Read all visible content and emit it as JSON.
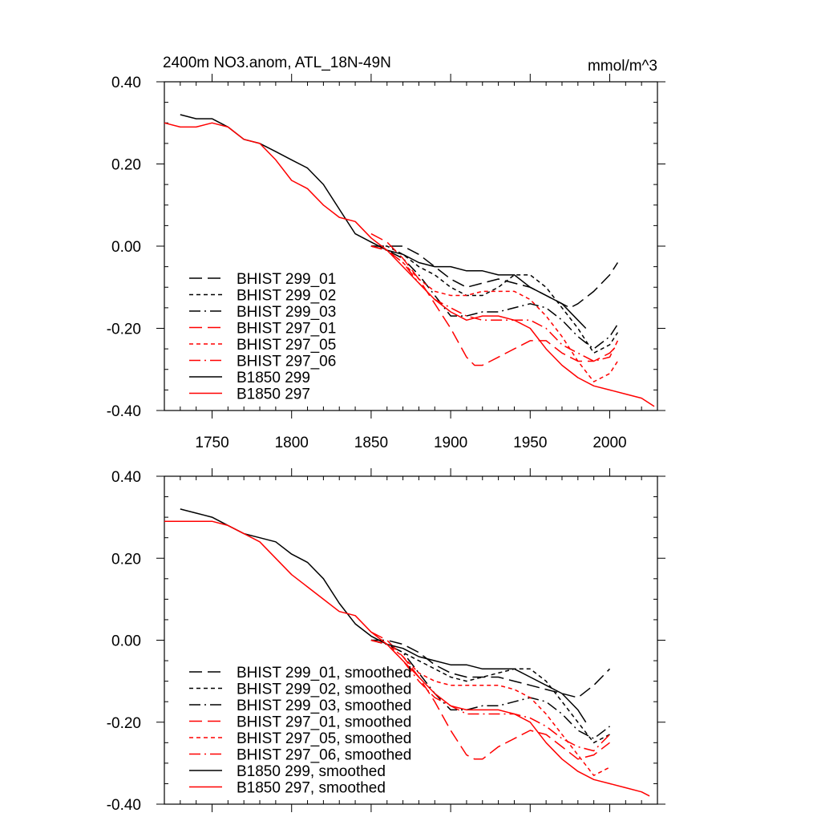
{
  "figure": {
    "title": "2400m NO3.anom, ATL_18N-49N",
    "units": "mmol/m^3"
  },
  "colors": {
    "black": "#000000",
    "red": "#ff0000"
  },
  "chart_data": [
    {
      "type": "line",
      "title": "2400m NO3.anom, ATL_18N-49N",
      "units": "mmol/m^3",
      "xlim": [
        1720,
        2030
      ],
      "ylim": [
        -0.4,
        0.4
      ],
      "xticks": [
        1750,
        1800,
        1850,
        1900,
        1950,
        2000
      ],
      "yticks": [
        0.4,
        0.2,
        0.0,
        -0.2,
        -0.4
      ],
      "ytick_labels": [
        "0.40",
        "0.20",
        "0.00",
        "-0.20",
        "-0.40"
      ],
      "legend_position": "bottom-left",
      "series": [
        {
          "name": "BHIST 299_01",
          "color": "#000000",
          "dash": "long",
          "x": [
            1850,
            1860,
            1870,
            1880,
            1890,
            1900,
            1910,
            1920,
            1930,
            1940,
            1950,
            1960,
            1970,
            1975,
            1980,
            1990,
            2000,
            2005
          ],
          "y": [
            0.0,
            0.0,
            0.0,
            -0.02,
            -0.05,
            -0.08,
            -0.1,
            -0.09,
            -0.08,
            -0.09,
            -0.1,
            -0.12,
            -0.14,
            -0.15,
            -0.14,
            -0.11,
            -0.07,
            -0.04
          ]
        },
        {
          "name": "BHIST 299_02",
          "color": "#000000",
          "dash": "short",
          "x": [
            1850,
            1860,
            1870,
            1880,
            1890,
            1900,
            1910,
            1920,
            1930,
            1940,
            1950,
            1960,
            1970,
            1980,
            1990,
            2000,
            2005
          ],
          "y": [
            0.0,
            0.0,
            -0.02,
            -0.05,
            -0.07,
            -0.1,
            -0.12,
            -0.12,
            -0.1,
            -0.07,
            -0.07,
            -0.1,
            -0.15,
            -0.2,
            -0.26,
            -0.24,
            -0.21
          ]
        },
        {
          "name": "BHIST 299_03",
          "color": "#000000",
          "dash": "dashdot",
          "x": [
            1850,
            1860,
            1870,
            1880,
            1890,
            1900,
            1910,
            1920,
            1930,
            1940,
            1950,
            1960,
            1970,
            1980,
            1990,
            2000,
            2005
          ],
          "y": [
            0.0,
            -0.01,
            -0.03,
            -0.07,
            -0.12,
            -0.17,
            -0.17,
            -0.16,
            -0.16,
            -0.15,
            -0.14,
            -0.15,
            -0.18,
            -0.22,
            -0.25,
            -0.22,
            -0.19
          ]
        },
        {
          "name": "BHIST 297_01",
          "color": "#ff0000",
          "dash": "long",
          "x": [
            1850,
            1860,
            1870,
            1880,
            1890,
            1900,
            1910,
            1915,
            1920,
            1925,
            1930,
            1940,
            1950,
            1960,
            1970,
            1980,
            1990,
            2000,
            2005
          ],
          "y": [
            0.03,
            0.01,
            -0.03,
            -0.08,
            -0.14,
            -0.2,
            -0.27,
            -0.29,
            -0.29,
            -0.28,
            -0.27,
            -0.25,
            -0.23,
            -0.23,
            -0.26,
            -0.28,
            -0.28,
            -0.26,
            -0.24
          ]
        },
        {
          "name": "BHIST 297_05",
          "color": "#ff0000",
          "dash": "short",
          "x": [
            1850,
            1860,
            1870,
            1880,
            1890,
            1900,
            1910,
            1920,
            1930,
            1940,
            1950,
            1960,
            1970,
            1980,
            1990,
            2000,
            2005
          ],
          "y": [
            0.0,
            -0.01,
            -0.04,
            -0.08,
            -0.11,
            -0.12,
            -0.12,
            -0.11,
            -0.11,
            -0.11,
            -0.13,
            -0.17,
            -0.22,
            -0.28,
            -0.33,
            -0.31,
            -0.28
          ]
        },
        {
          "name": "BHIST 297_06",
          "color": "#ff0000",
          "dash": "dashdot",
          "x": [
            1850,
            1860,
            1870,
            1880,
            1890,
            1900,
            1910,
            1920,
            1930,
            1940,
            1950,
            1960,
            1970,
            1980,
            1990,
            2000,
            2005
          ],
          "y": [
            0.0,
            -0.01,
            -0.04,
            -0.09,
            -0.13,
            -0.15,
            -0.17,
            -0.18,
            -0.18,
            -0.18,
            -0.18,
            -0.2,
            -0.24,
            -0.26,
            -0.28,
            -0.27,
            -0.23
          ]
        },
        {
          "name": "B1850 299",
          "color": "#000000",
          "dash": "solid",
          "x": [
            1730,
            1740,
            1750,
            1760,
            1770,
            1780,
            1790,
            1800,
            1810,
            1820,
            1830,
            1840,
            1850,
            1860,
            1870,
            1880,
            1890,
            1900,
            1910,
            1920,
            1930,
            1940,
            1950,
            1960,
            1970,
            1980,
            1985
          ],
          "y": [
            0.32,
            0.31,
            0.31,
            0.29,
            0.26,
            0.25,
            0.23,
            0.21,
            0.19,
            0.15,
            0.09,
            0.03,
            0.01,
            -0.01,
            -0.02,
            -0.04,
            -0.05,
            -0.05,
            -0.06,
            -0.06,
            -0.07,
            -0.07,
            -0.1,
            -0.12,
            -0.14,
            -0.18,
            -0.2
          ]
        },
        {
          "name": "B1850 297",
          "color": "#ff0000",
          "dash": "solid",
          "x": [
            1720,
            1730,
            1740,
            1750,
            1760,
            1770,
            1780,
            1790,
            1800,
            1810,
            1820,
            1830,
            1840,
            1850,
            1860,
            1870,
            1880,
            1890,
            1900,
            1910,
            1920,
            1930,
            1940,
            1950,
            1960,
            1970,
            1980,
            1990,
            2000,
            2010,
            2020,
            2028
          ],
          "y": [
            0.3,
            0.29,
            0.29,
            0.3,
            0.29,
            0.26,
            0.25,
            0.21,
            0.16,
            0.14,
            0.1,
            0.07,
            0.06,
            0.02,
            -0.01,
            -0.05,
            -0.09,
            -0.13,
            -0.16,
            -0.18,
            -0.17,
            -0.17,
            -0.18,
            -0.2,
            -0.25,
            -0.29,
            -0.32,
            -0.34,
            -0.35,
            -0.36,
            -0.37,
            -0.39
          ]
        }
      ]
    },
    {
      "type": "line",
      "xlim": [
        1720,
        2030
      ],
      "ylim": [
        -0.4,
        0.4
      ],
      "xticks": [
        1750,
        1800,
        1850,
        1900,
        1950,
        2000
      ],
      "yticks": [
        0.4,
        0.2,
        0.0,
        -0.2,
        -0.4
      ],
      "ytick_labels": [
        "0.40",
        "0.20",
        "0.00",
        "-0.20",
        "-0.40"
      ],
      "legend_position": "bottom-left",
      "series": [
        {
          "name": "BHIST 299_01, smoothed",
          "color": "#000000",
          "dash": "long",
          "x": [
            1850,
            1860,
            1870,
            1880,
            1890,
            1900,
            1910,
            1920,
            1930,
            1940,
            1950,
            1960,
            1970,
            1980,
            1990,
            2000
          ],
          "y": [
            0.0,
            0.0,
            -0.01,
            -0.03,
            -0.06,
            -0.08,
            -0.09,
            -0.09,
            -0.09,
            -0.1,
            -0.11,
            -0.12,
            -0.13,
            -0.14,
            -0.11,
            -0.07
          ]
        },
        {
          "name": "BHIST 299_02, smoothed",
          "color": "#000000",
          "dash": "short",
          "x": [
            1850,
            1860,
            1870,
            1880,
            1890,
            1900,
            1910,
            1920,
            1930,
            1940,
            1950,
            1960,
            1970,
            1980,
            1990,
            2000
          ],
          "y": [
            0.0,
            -0.01,
            -0.03,
            -0.05,
            -0.07,
            -0.09,
            -0.1,
            -0.09,
            -0.08,
            -0.07,
            -0.07,
            -0.1,
            -0.15,
            -0.2,
            -0.25,
            -0.23
          ]
        },
        {
          "name": "BHIST 299_03, smoothed",
          "color": "#000000",
          "dash": "dashdot",
          "x": [
            1850,
            1860,
            1870,
            1880,
            1890,
            1900,
            1910,
            1920,
            1930,
            1940,
            1950,
            1960,
            1970,
            1980,
            1990,
            2000
          ],
          "y": [
            0.0,
            -0.01,
            -0.03,
            -0.08,
            -0.13,
            -0.17,
            -0.17,
            -0.16,
            -0.16,
            -0.15,
            -0.14,
            -0.15,
            -0.18,
            -0.22,
            -0.24,
            -0.21
          ]
        },
        {
          "name": "BHIST 297_01, smoothed",
          "color": "#ff0000",
          "dash": "long",
          "x": [
            1850,
            1860,
            1870,
            1880,
            1890,
            1900,
            1910,
            1915,
            1920,
            1930,
            1940,
            1950,
            1960,
            1970,
            1980,
            1990,
            2000
          ],
          "y": [
            0.02,
            0.0,
            -0.04,
            -0.09,
            -0.15,
            -0.22,
            -0.28,
            -0.29,
            -0.29,
            -0.26,
            -0.24,
            -0.22,
            -0.23,
            -0.26,
            -0.29,
            -0.28,
            -0.25
          ]
        },
        {
          "name": "BHIST 297_05, smoothed",
          "color": "#ff0000",
          "dash": "short",
          "x": [
            1850,
            1860,
            1870,
            1880,
            1890,
            1900,
            1910,
            1920,
            1930,
            1940,
            1950,
            1960,
            1970,
            1980,
            1990,
            2000
          ],
          "y": [
            0.0,
            -0.01,
            -0.04,
            -0.08,
            -0.1,
            -0.11,
            -0.11,
            -0.11,
            -0.11,
            -0.12,
            -0.14,
            -0.18,
            -0.23,
            -0.28,
            -0.33,
            -0.31
          ]
        },
        {
          "name": "BHIST 297_06, smoothed",
          "color": "#ff0000",
          "dash": "dashdot",
          "x": [
            1850,
            1860,
            1870,
            1880,
            1890,
            1900,
            1910,
            1920,
            1930,
            1940,
            1950,
            1960,
            1970,
            1980,
            1990,
            2000
          ],
          "y": [
            0.0,
            -0.01,
            -0.05,
            -0.1,
            -0.14,
            -0.16,
            -0.18,
            -0.18,
            -0.18,
            -0.18,
            -0.19,
            -0.21,
            -0.24,
            -0.26,
            -0.27,
            -0.23
          ]
        },
        {
          "name": "B1850 299, smoothed",
          "color": "#000000",
          "dash": "solid",
          "x": [
            1730,
            1740,
            1750,
            1760,
            1770,
            1780,
            1790,
            1800,
            1810,
            1820,
            1830,
            1840,
            1850,
            1860,
            1870,
            1880,
            1890,
            1900,
            1910,
            1920,
            1930,
            1940,
            1950,
            1960,
            1970,
            1980,
            1985
          ],
          "y": [
            0.32,
            0.31,
            0.3,
            0.28,
            0.26,
            0.25,
            0.24,
            0.21,
            0.19,
            0.15,
            0.09,
            0.04,
            0.01,
            -0.01,
            -0.02,
            -0.04,
            -0.05,
            -0.06,
            -0.06,
            -0.07,
            -0.07,
            -0.07,
            -0.09,
            -0.11,
            -0.13,
            -0.17,
            -0.2
          ]
        },
        {
          "name": "B1850 297, smoothed",
          "color": "#ff0000",
          "dash": "solid",
          "x": [
            1720,
            1730,
            1740,
            1750,
            1760,
            1770,
            1780,
            1790,
            1800,
            1810,
            1820,
            1830,
            1840,
            1850,
            1860,
            1870,
            1880,
            1890,
            1900,
            1910,
            1920,
            1930,
            1940,
            1950,
            1960,
            1970,
            1980,
            1990,
            2000,
            2010,
            2020,
            2025
          ],
          "y": [
            0.29,
            0.29,
            0.29,
            0.29,
            0.28,
            0.26,
            0.24,
            0.2,
            0.16,
            0.13,
            0.1,
            0.07,
            0.06,
            0.02,
            -0.01,
            -0.05,
            -0.09,
            -0.13,
            -0.16,
            -0.17,
            -0.17,
            -0.17,
            -0.18,
            -0.2,
            -0.25,
            -0.29,
            -0.32,
            -0.34,
            -0.35,
            -0.36,
            -0.37,
            -0.38
          ]
        }
      ]
    }
  ]
}
